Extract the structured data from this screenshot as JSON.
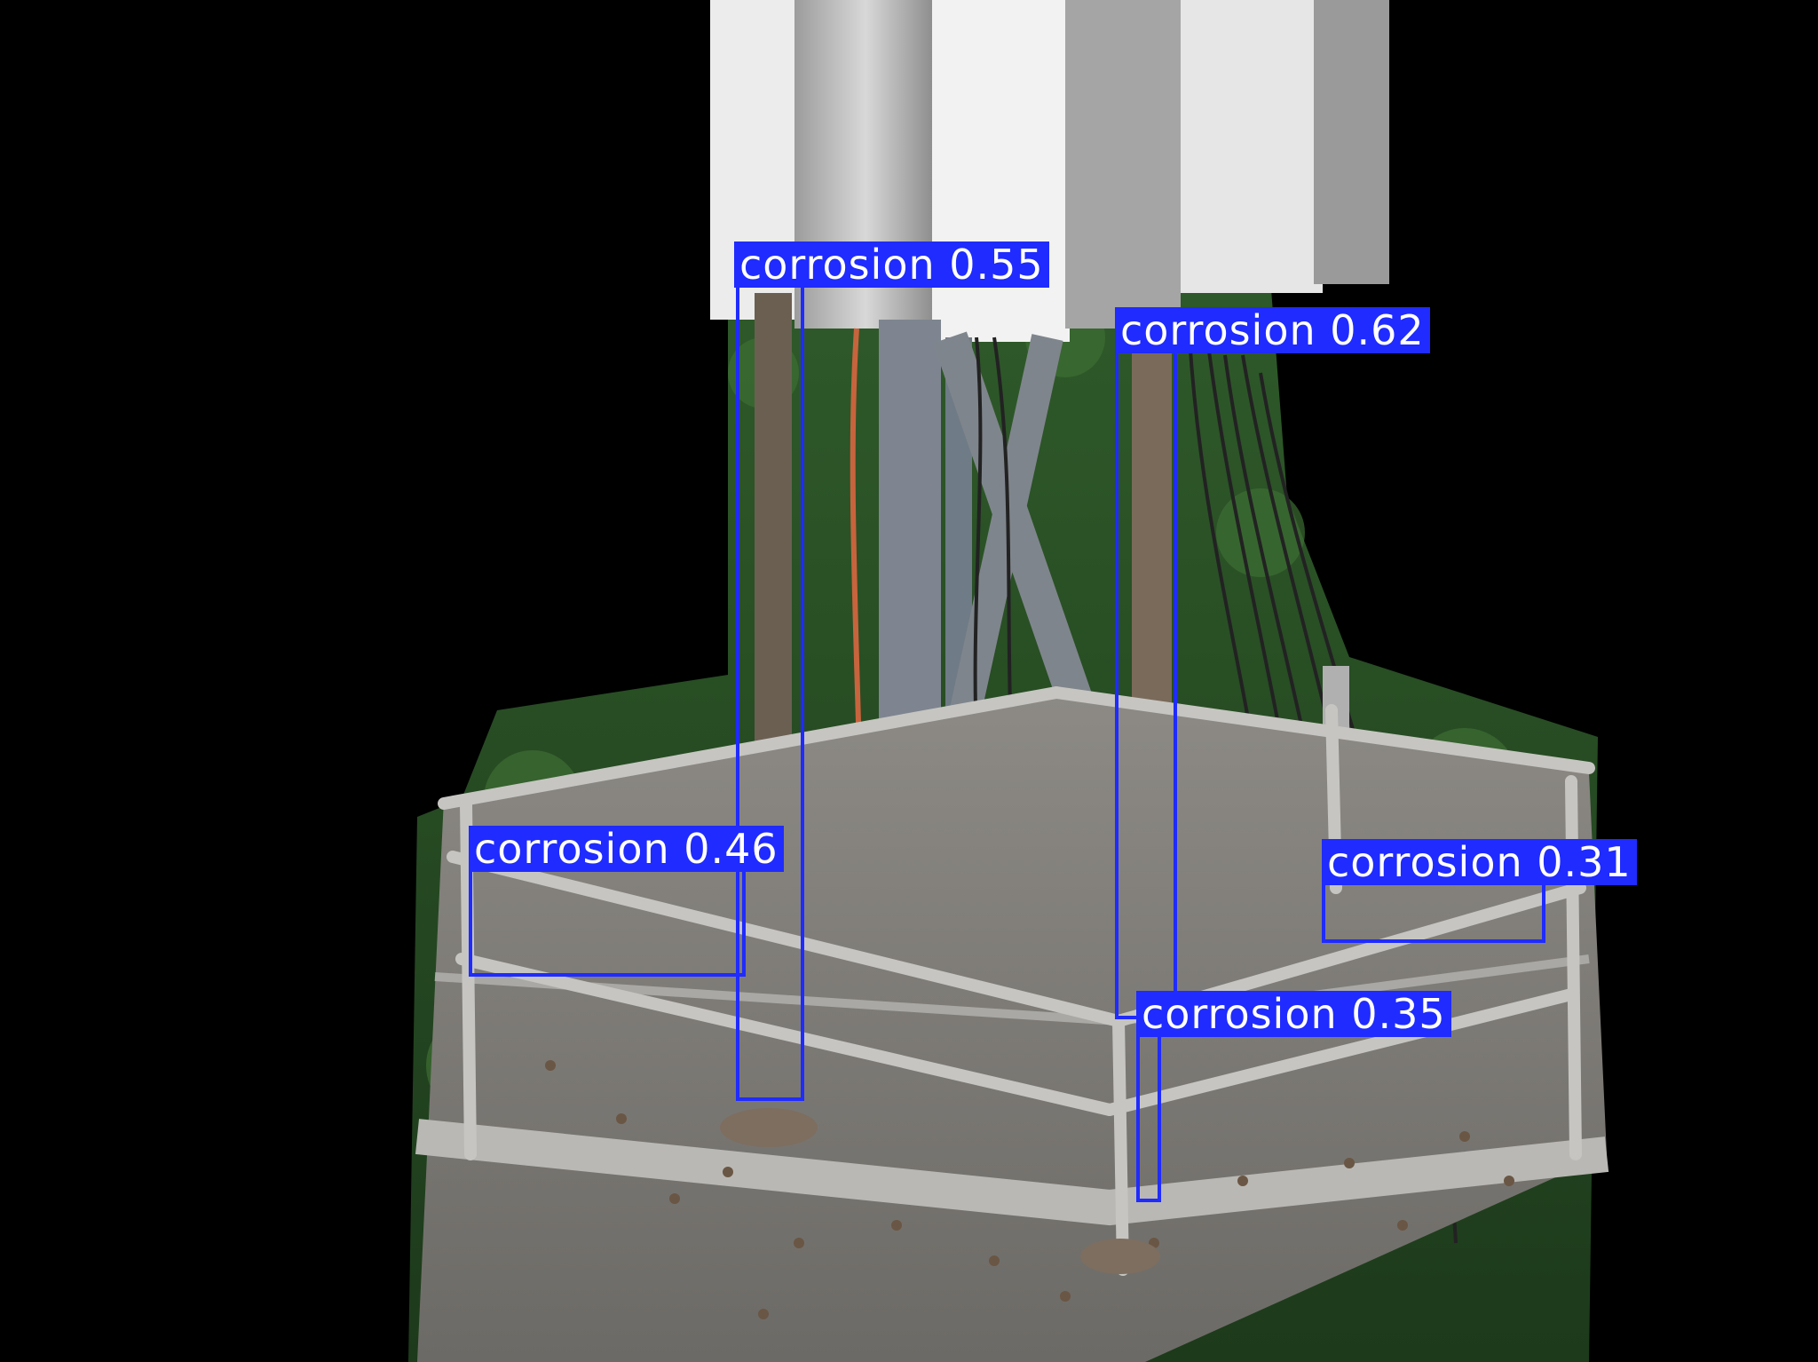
{
  "image": {
    "subject": "telecom tower platform with antenna panels and cables, aerial view over forest, background masked black",
    "background_color": "#000000",
    "accent_color": "#1f2bff"
  },
  "detections": [
    {
      "label": "corrosion 0.55"
    },
    {
      "label": "corrosion 0.62"
    },
    {
      "label": "corrosion 0.46"
    },
    {
      "label": "corrosion 0.31"
    },
    {
      "label": "corrosion 0.35"
    }
  ]
}
